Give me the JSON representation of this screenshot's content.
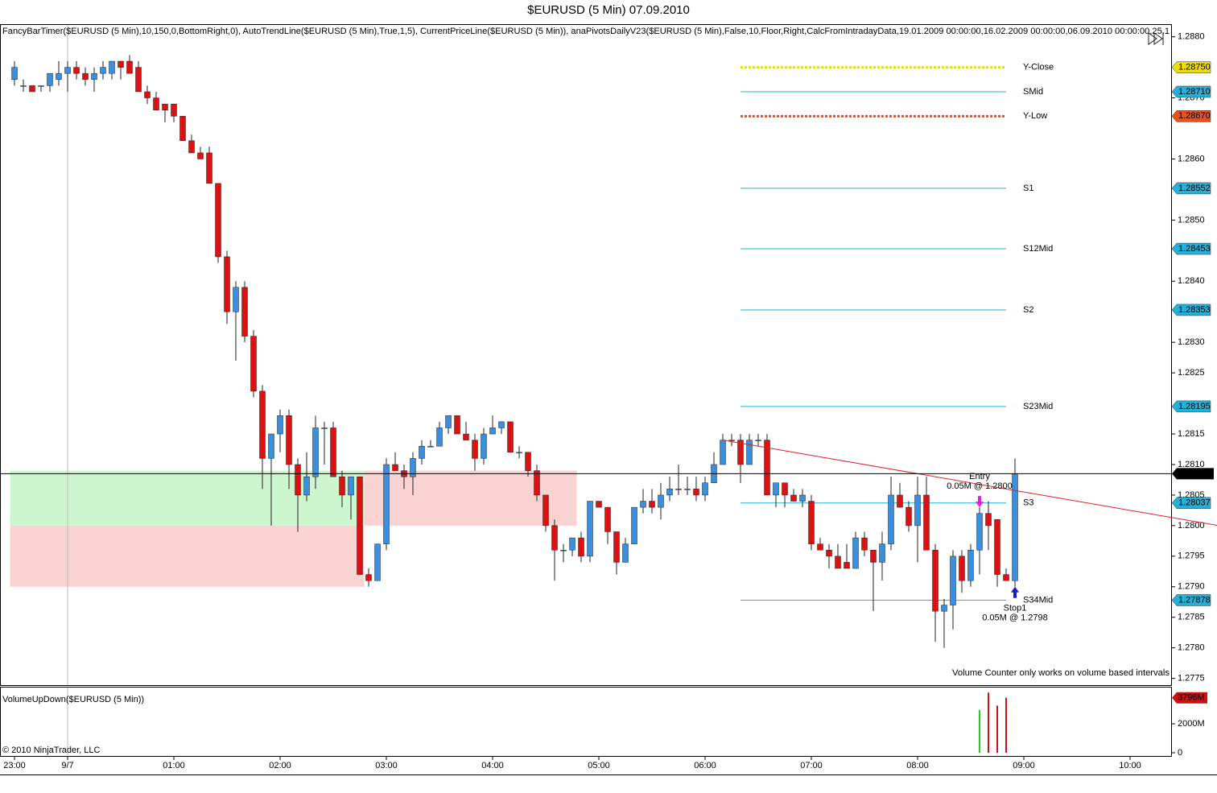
{
  "chart_data": [
    {
      "type": "candlestick",
      "title": "$EURUSD (5 Min)  07.09.2010",
      "subtitle": "FancyBarTimer($EURUSD (5 Min),10,150,0,BottomRight,0), AutoTrendLine($EURUSD (5 Min),True,1,5), CurrentPriceLine($EURUSD (5 Min)), anaPivotsDailyV23($EURUSD (5 Min),False,10,Floor,Right,CalcFromIntradayData,19.01.2009 00:00:00,16.02.2009 00:00:00,06.09.2010 00:00:00,25,1",
      "categories": [
        "23:00",
        null,
        null,
        null,
        null,
        null,
        "9/7",
        null,
        null,
        null,
        null,
        null,
        null,
        null,
        null,
        null,
        null,
        null,
        "01:00",
        null,
        null,
        null,
        null,
        null,
        null,
        null,
        null,
        null,
        null,
        null,
        "02:00",
        null,
        null,
        null,
        null,
        null,
        null,
        null,
        null,
        null,
        null,
        null,
        "03:00",
        null,
        null,
        null,
        null,
        null,
        null,
        null,
        null,
        null,
        null,
        null,
        "04:00",
        null,
        null,
        null,
        null,
        null,
        null,
        null,
        null,
        null,
        null,
        null,
        "05:00",
        null,
        null,
        null,
        null,
        null,
        null,
        null,
        null,
        null,
        null,
        null,
        "06:00",
        null,
        null,
        null,
        null,
        null,
        null,
        null,
        null,
        null,
        null,
        null,
        "07:00",
        null,
        null,
        null,
        null,
        null,
        null,
        null,
        null,
        null,
        null,
        null,
        "08:00",
        null,
        null,
        null,
        null,
        null,
        null,
        null,
        null,
        null,
        null,
        null,
        "09:00",
        null,
        null,
        null,
        null,
        null,
        null,
        null,
        null,
        null,
        null,
        null,
        "10:00"
      ],
      "open": [
        1.2873,
        1.2872,
        1.2872,
        1.2872,
        1.2872,
        1.2873,
        1.2874,
        1.2875,
        1.2874,
        1.2873,
        1.2874,
        1.2874,
        1.2876,
        1.2876,
        1.2875,
        1.2871,
        1.287,
        1.2869,
        1.2869,
        1.2867,
        1.2863,
        1.2861,
        1.2861,
        1.2856,
        1.2844,
        1.2835,
        1.2839,
        1.2831,
        1.2822,
        1.2811,
        1.2815,
        1.2818,
        1.281,
        1.2805,
        1.2808,
        1.2816,
        1.2816,
        1.2808,
        1.2805,
        1.2808,
        1.2792,
        1.2791,
        1.2797,
        1.281,
        1.2809,
        1.2808,
        1.2811,
        1.2813,
        1.2813,
        1.2816,
        1.2818,
        1.2815,
        1.2814,
        1.2811,
        1.2815,
        1.2816,
        1.2817,
        1.2812,
        1.2812,
        1.2809,
        1.2805,
        1.28,
        1.2796,
        1.2796,
        1.2798,
        1.2795,
        1.2804,
        1.2803,
        1.2799,
        1.2794,
        1.2797,
        1.2803,
        1.2804,
        1.2803,
        1.2805,
        1.2806,
        1.2806,
        1.2806,
        1.2805,
        1.2807,
        1.281,
        1.2814,
        1.2814,
        1.281,
        1.2814,
        1.2814,
        1.2805,
        1.2807,
        1.2805,
        1.2804,
        1.2804,
        1.2797,
        1.2796,
        1.2795,
        1.2794,
        1.2793,
        1.2798,
        1.2796,
        1.2794,
        1.2797,
        1.2805,
        1.2803,
        1.28,
        1.2805,
        1.2796,
        1.2786,
        1.2787,
        1.2795,
        1.2791,
        1.2796,
        1.2802,
        1.2801,
        1.2792,
        1.2791,
        null,
        null,
        null,
        null,
        null,
        null,
        null,
        null,
        null,
        null,
        null,
        null,
        null
      ],
      "high": [
        1.2876,
        1.2873,
        1.2872,
        1.2872,
        1.2874,
        1.2876,
        1.2876,
        1.2876,
        1.2875,
        1.2875,
        1.2876,
        1.2876,
        1.2876,
        1.2877,
        1.2876,
        1.2872,
        1.2871,
        1.2869,
        1.2869,
        1.2867,
        1.2864,
        1.2862,
        1.2862,
        1.2856,
        1.2845,
        1.284,
        1.284,
        1.2832,
        1.2823,
        1.2815,
        1.2819,
        1.2819,
        1.2811,
        1.2812,
        1.2818,
        1.2817,
        1.2817,
        1.2809,
        1.2808,
        1.2808,
        1.2793,
        1.2797,
        1.2811,
        1.2812,
        1.281,
        1.2812,
        1.2814,
        1.2814,
        1.2817,
        1.2818,
        1.2818,
        1.2817,
        1.2815,
        1.2816,
        1.2818,
        1.2817,
        1.2817,
        1.2813,
        1.2812,
        1.281,
        1.2805,
        1.2801,
        1.2797,
        1.2798,
        1.2799,
        1.2804,
        1.2804,
        1.2803,
        1.2799,
        1.2798,
        1.2803,
        1.2806,
        1.2806,
        1.2807,
        1.2808,
        1.281,
        1.2808,
        1.2808,
        1.2808,
        1.2812,
        1.2815,
        1.2815,
        1.2815,
        1.2815,
        1.2815,
        1.2815,
        1.2807,
        1.2807,
        1.2806,
        1.2806,
        1.2805,
        1.2798,
        1.2797,
        1.2797,
        1.2797,
        1.2799,
        1.2799,
        1.2796,
        1.2799,
        1.2808,
        1.2807,
        1.2804,
        1.2808,
        1.2808,
        1.2797,
        1.2788,
        1.2796,
        1.2796,
        1.2797,
        1.2803,
        1.2804,
        1.2801,
        1.2793,
        1.2811,
        null,
        null,
        null,
        null,
        null,
        null,
        null,
        null,
        null,
        null,
        null,
        null,
        null
      ],
      "low": [
        1.2872,
        1.2871,
        1.2871,
        1.2871,
        1.2871,
        1.2872,
        1.2871,
        1.2873,
        1.2872,
        1.2871,
        1.2873,
        1.2873,
        1.2873,
        1.2874,
        1.2871,
        1.2869,
        1.2868,
        1.2866,
        1.2866,
        1.2863,
        1.2861,
        1.286,
        1.2856,
        1.2843,
        1.2833,
        1.2827,
        1.283,
        1.2821,
        1.2806,
        1.28,
        1.2812,
        1.2806,
        1.2799,
        1.2804,
        1.2806,
        1.281,
        1.2808,
        1.2803,
        1.2801,
        1.2792,
        1.279,
        1.2791,
        1.2796,
        1.2809,
        1.2806,
        1.2805,
        1.281,
        1.2813,
        1.2813,
        1.2815,
        1.2815,
        1.2814,
        1.2809,
        1.281,
        1.2815,
        1.2815,
        1.2812,
        1.2811,
        1.2808,
        1.2804,
        1.2799,
        1.2791,
        1.2794,
        1.2795,
        1.2794,
        1.2794,
        1.2803,
        1.2797,
        1.2792,
        1.2794,
        1.2797,
        1.2802,
        1.2802,
        1.2801,
        1.2804,
        1.2805,
        1.2805,
        1.2804,
        1.2804,
        1.2807,
        1.281,
        1.2813,
        1.2807,
        1.281,
        1.2813,
        1.2805,
        1.2803,
        1.2803,
        1.2804,
        1.2803,
        1.2796,
        1.2796,
        1.2793,
        1.2793,
        1.2793,
        1.2793,
        1.2795,
        1.2786,
        1.2791,
        1.2796,
        1.2803,
        1.2799,
        1.2794,
        1.2796,
        1.2781,
        1.278,
        1.2783,
        1.2789,
        1.279,
        1.2792,
        1.2796,
        1.279,
        1.2791,
        1.279,
        null,
        null,
        null,
        null,
        null,
        null,
        null,
        null,
        null,
        null,
        null,
        null,
        null
      ],
      "close": [
        1.2875,
        1.2872,
        1.2871,
        1.2872,
        1.2874,
        1.2874,
        1.2875,
        1.2874,
        1.2873,
        1.2874,
        1.2875,
        1.2876,
        1.2875,
        1.2874,
        1.2871,
        1.287,
        1.2868,
        1.2868,
        1.2867,
        1.2863,
        1.2861,
        1.286,
        1.2856,
        1.2844,
        1.2835,
        1.2839,
        1.2831,
        1.2822,
        1.2811,
        1.2815,
        1.2818,
        1.281,
        1.2805,
        1.2808,
        1.2816,
        1.2816,
        1.2808,
        1.2805,
        1.2808,
        1.2792,
        1.2791,
        1.2797,
        1.281,
        1.2809,
        1.2808,
        1.2811,
        1.2813,
        1.2813,
        1.2816,
        1.2818,
        1.2815,
        1.2814,
        1.2811,
        1.2815,
        1.2816,
        1.2817,
        1.2812,
        1.2812,
        1.2809,
        1.2805,
        1.28,
        1.2796,
        1.2796,
        1.2798,
        1.2795,
        1.2804,
        1.2803,
        1.2799,
        1.2794,
        1.2797,
        1.2803,
        1.2804,
        1.2803,
        1.2805,
        1.2806,
        1.2806,
        1.2806,
        1.2805,
        1.2807,
        1.281,
        1.2814,
        1.2814,
        1.281,
        1.2814,
        1.2814,
        1.2805,
        1.2807,
        1.2805,
        1.2804,
        1.2805,
        1.2797,
        1.2796,
        1.2795,
        1.2793,
        1.2793,
        1.2798,
        1.2796,
        1.2794,
        1.2797,
        1.2805,
        1.2803,
        1.28,
        1.2805,
        1.2796,
        1.2786,
        1.2787,
        1.2795,
        1.2791,
        1.2796,
        1.2802,
        1.28,
        1.2792,
        1.2791,
        1.28085,
        null,
        null,
        null,
        null,
        null,
        null,
        null,
        null,
        null,
        null,
        null,
        null,
        null
      ],
      "up_color": "#3b8fdf",
      "down_color": "#dd1111",
      "ylim": [
        1.27739,
        1.28818
      ],
      "yticks": [
        {
          "value": 1.288,
          "label": "1.2880"
        },
        {
          "value": 1.287,
          "label": "1.2870"
        },
        {
          "value": 1.286,
          "label": "1.2860"
        },
        {
          "value": 1.285,
          "label": "1.2850"
        },
        {
          "value": 1.284,
          "label": "1.2840"
        },
        {
          "value": 1.283,
          "label": "1.2830"
        },
        1.2825,
        1.2815,
        {
          "value": 1.281,
          "label": "1.2810"
        },
        1.2805,
        {
          "value": 1.28,
          "label": "1.2800"
        },
        1.2795,
        {
          "value": 1.279,
          "label": "1.2790"
        },
        1.2785,
        {
          "value": 1.278,
          "label": "1.2780"
        },
        1.2775
      ],
      "current_price": {
        "value": 1.28085,
        "label": "1.2808'5",
        "color": "#000000"
      },
      "pivots": [
        {
          "name": "Y-Close",
          "value": 1.2875,
          "label": "1.28750",
          "color": "#f0dc00",
          "tag_text_color": "#000000",
          "dotted": true
        },
        {
          "name": "SMid",
          "value": 1.2871,
          "label": "1.28710",
          "color": "#25b0da",
          "tag_text_color": "#000000",
          "dotted": false
        },
        {
          "name": "Y-Low",
          "value": 1.2867,
          "label": "1.28670",
          "color": "#e8501e",
          "tag_text_color": "#ffffff",
          "dotted": true
        },
        {
          "name": "S1",
          "value": 1.28552,
          "label": "1.28552",
          "color": "#25b0da",
          "tag_text_color": "#000000",
          "dotted": false
        },
        {
          "name": "S12Mid",
          "value": 1.28453,
          "label": "1.28453",
          "color": "#25b0da",
          "tag_text_color": "#000000",
          "dotted": false
        },
        {
          "name": "S2",
          "value": 1.28353,
          "label": "1.28353",
          "color": "#25b0da",
          "tag_text_color": "#000000",
          "dotted": false
        },
        {
          "name": "S23Mid",
          "value": 1.28195,
          "label": "1.28195",
          "color": "#25b0da",
          "tag_text_color": "#000000",
          "dotted": false
        },
        {
          "name": "S3",
          "value": 1.28037,
          "label": "1.28037",
          "color": "#25b0da",
          "tag_text_color": "#000000",
          "dotted": false
        },
        {
          "name": "S34Mid",
          "value": 1.27878,
          "label": "1.27878",
          "color": "#25b0da",
          "tag_text_color": "#000000",
          "dotted": false
        }
      ],
      "trend_line": {
        "color": "#e02020",
        "x": [
          80,
          136
        ],
        "values": [
          1.2814,
          1.28
        ]
      },
      "zones": [
        {
          "color": "#c6f5c6",
          "x": [
            0,
            40
          ],
          "low": 1.28,
          "high": 1.2809
        },
        {
          "color": "#f8caca",
          "x": [
            40,
            64
          ],
          "low": 1.28,
          "high": 1.2809
        },
        {
          "color": "#f8caca",
          "x": [
            0,
            40
          ],
          "low": 1.279,
          "high": 1.28
        }
      ],
      "annotations": [
        {
          "text": "Entry",
          "detail": "0.05M @ 1.2800",
          "x": 109,
          "arrow": 1.2803,
          "direction": "down",
          "color": "#e020e0"
        },
        {
          "text": "Stop1",
          "detail": "0.05M @ 1.2798",
          "x": 113,
          "arrow": 1.279,
          "direction": "up",
          "color": "#1020d0"
        }
      ],
      "note": "Volume Counter only works on volume based intervals"
    },
    {
      "type": "bar",
      "title": "VolumeUpDown($EURUSD (5 Min))",
      "values": [
        null,
        null,
        null,
        null,
        null,
        null,
        null,
        null,
        null,
        null,
        null,
        null,
        null,
        null,
        null,
        null,
        null,
        null,
        null,
        null,
        null,
        null,
        null,
        null,
        null,
        null,
        null,
        null,
        null,
        null,
        null,
        null,
        null,
        null,
        null,
        null,
        null,
        null,
        null,
        null,
        null,
        null,
        null,
        null,
        null,
        null,
        null,
        null,
        null,
        null,
        null,
        null,
        null,
        null,
        null,
        null,
        null,
        null,
        null,
        null,
        null,
        null,
        null,
        null,
        null,
        null,
        null,
        null,
        null,
        null,
        null,
        null,
        null,
        null,
        null,
        null,
        null,
        null,
        null,
        null,
        null,
        null,
        null,
        null,
        null,
        null,
        null,
        null,
        null,
        null,
        null,
        null,
        null,
        null,
        null,
        null,
        null,
        null,
        null,
        null,
        null,
        null,
        null,
        null,
        null,
        null,
        null,
        null,
        null,
        2950,
        4150,
        3250,
        3796,
        null,
        null,
        null,
        null,
        null,
        null,
        null,
        null,
        null,
        null,
        null,
        null,
        null
      ],
      "up_color": "#22cc22",
      "down_color": "#cc1111",
      "ylim": [
        0,
        4280
      ],
      "yticks": [
        0,
        {
          "value": 2000,
          "label": "2000M"
        }
      ],
      "tag": {
        "value": 3796,
        "label": "3796M",
        "color": "#cc1111"
      },
      "footer": "© 2010 NinjaTrader, LLC"
    }
  ]
}
